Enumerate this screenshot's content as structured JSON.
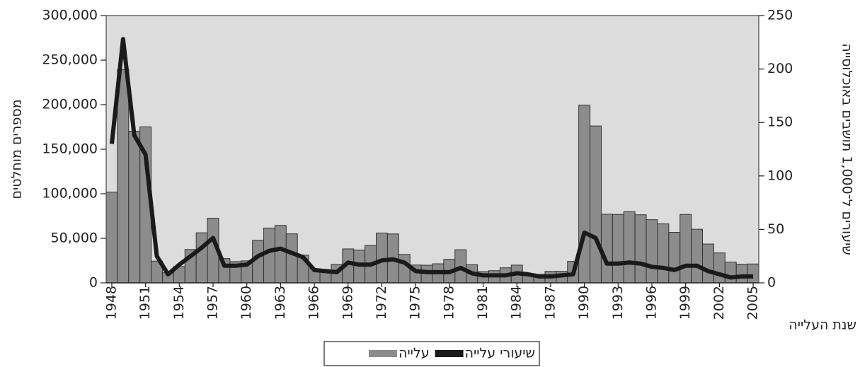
{
  "chart_data": {
    "type": "bar_line",
    "xlabel": "שנת העלייה",
    "ylabel": "מספרים מוחלטים",
    "y2label": "שיעורים ל־1,000 תושבים באוכלוסייה",
    "categories": [
      "1948",
      null,
      null,
      "1951",
      null,
      null,
      "1954",
      null,
      null,
      "1957",
      null,
      null,
      "1960",
      null,
      null,
      "1963",
      null,
      null,
      "1966",
      null,
      null,
      "1969",
      null,
      null,
      "1972",
      null,
      null,
      "1975",
      null,
      null,
      "1978",
      null,
      null,
      "1981",
      null,
      null,
      "1984",
      null,
      null,
      "1987",
      null,
      null,
      "1990",
      null,
      null,
      "1993",
      null,
      null,
      "1996",
      null,
      null,
      "1999",
      null,
      null,
      "2002",
      null,
      null,
      "2005"
    ],
    "series": [
      {
        "name": "עלייה",
        "type": "bar",
        "color": "#8c8c8c",
        "values": [
          101800,
          239600,
          170200,
          175100,
          24400,
          11300,
          18400,
          37500,
          56200,
          72600,
          27300,
          23900,
          24700,
          47700,
          61500,
          64500,
          55000,
          31100,
          15700,
          14500,
          20700,
          38100,
          36800,
          41900,
          55900,
          54900,
          31900,
          20000,
          19800,
          21400,
          26400,
          37200,
          20400,
          12600,
          13700,
          16900,
          19900,
          10600,
          9500,
          12900,
          13000,
          24100,
          199500,
          176100,
          77000,
          76800,
          79800,
          76400,
          70900,
          66200,
          56700,
          76800,
          60200,
          43600,
          33600,
          23300,
          20900,
          21200
        ]
      },
      {
        "name": "שיעורי עלייה",
        "type": "line",
        "axis": "y2",
        "color": "#1a1a1a",
        "values": [
          130,
          228,
          138,
          120,
          25,
          8,
          17,
          25,
          33,
          42,
          16,
          16,
          17,
          25,
          30,
          32,
          28,
          24,
          12,
          11,
          10,
          19,
          17,
          17,
          21,
          22,
          19,
          11,
          10,
          10,
          10,
          14,
          9,
          7,
          7,
          7,
          9,
          8,
          6,
          6,
          7,
          8,
          47,
          42,
          18,
          18,
          19,
          18,
          15,
          14,
          12,
          16,
          16,
          11,
          8,
          5,
          6,
          6
        ]
      }
    ],
    "ylim": [
      0,
      300000
    ],
    "yticks": [
      0,
      {
        "value": 50000,
        "label": "50,000"
      },
      {
        "value": 100000,
        "label": "100,000"
      },
      {
        "value": 150000,
        "label": "150,000"
      },
      {
        "value": 200000,
        "label": "200,000"
      },
      {
        "value": 250000,
        "label": "250,000"
      },
      {
        "value": 300000,
        "label": "300,000"
      }
    ],
    "y2lim": [
      0,
      250
    ],
    "y2ticks": [
      0,
      50,
      100,
      150,
      200,
      250
    ],
    "legend": "bottom"
  }
}
